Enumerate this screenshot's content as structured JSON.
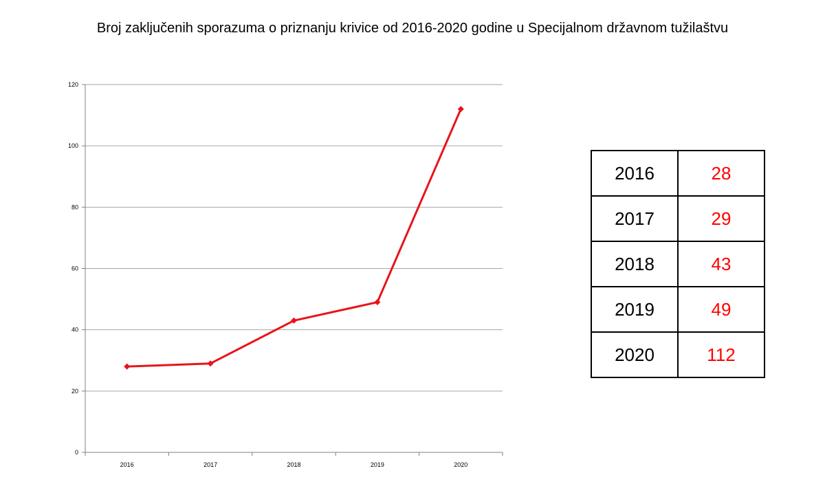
{
  "title": "Broj zaključenih sporazuma o priznanju krivice od 2016-2020 godine u Specijalnom državnom tužilaštvu",
  "colors": {
    "line": "#e8131a",
    "table_value": "#ff0000",
    "grid": "#a6a6a6"
  },
  "chart_data": {
    "type": "line",
    "title": "Broj zaključenih sporazuma o priznanju krivice od 2016-2020 godine u Specijalnom državnom tužilaštvu",
    "categories": [
      "2016",
      "2017",
      "2018",
      "2019",
      "2020"
    ],
    "series": [
      {
        "values": [
          28,
          29,
          43,
          49,
          112
        ]
      }
    ],
    "y_ticks": [
      0,
      20,
      40,
      60,
      80,
      100,
      120
    ],
    "ylim": [
      0,
      120
    ],
    "xlabel": "",
    "ylabel": "",
    "grid": true,
    "legend": "none",
    "marker": "diamond"
  },
  "table": {
    "rows": [
      {
        "year": "2016",
        "value": "28"
      },
      {
        "year": "2017",
        "value": "29"
      },
      {
        "year": "2018",
        "value": "43"
      },
      {
        "year": "2019",
        "value": "49"
      },
      {
        "year": "2020",
        "value": "112"
      }
    ]
  }
}
